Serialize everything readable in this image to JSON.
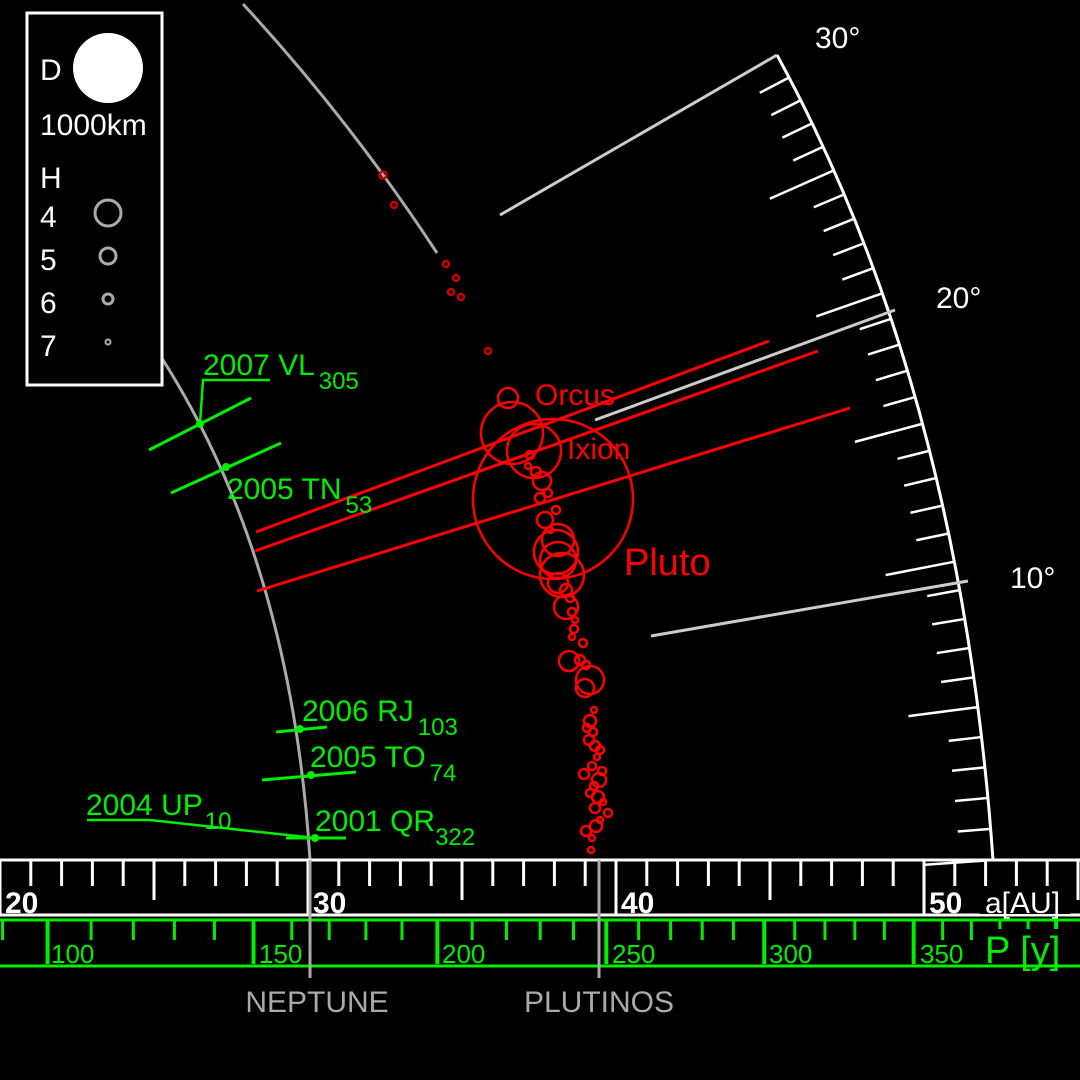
{
  "colors": {
    "background": "#000000",
    "scale_white": "#ffffff",
    "guide_grey": "#aaaaaa",
    "trojans_green": "#00ee00",
    "plutinos_red": "#ff0000"
  },
  "legend": {
    "d_label": "D",
    "d_value": "1000km",
    "h_label": "H",
    "h_items": [
      {
        "label": "4",
        "h": 4
      },
      {
        "label": "5",
        "h": 5
      },
      {
        "label": "6",
        "h": 6
      },
      {
        "label": "7",
        "h": 7
      }
    ]
  },
  "axes": {
    "au_label": "a[AU]",
    "au_ticks": [
      "20",
      "30",
      "40",
      "50"
    ],
    "period_label": "P [y]",
    "period_ticks": [
      "100",
      "150",
      "200",
      "250",
      "300",
      "350"
    ],
    "inclination_ticks": [
      "30°",
      "20°",
      "10°"
    ]
  },
  "markers": {
    "neptune": "NEPTUNE",
    "plutinos": "PLUTINOS"
  },
  "plutino_labels": {
    "orcus": "Orcus",
    "ixion": "Ixion",
    "pluto": "Pluto"
  },
  "trojans": [
    {
      "name": "2007 VL",
      "sub": "305"
    },
    {
      "name": "2005 TN",
      "sub": "53"
    },
    {
      "name": "2006 RJ",
      "sub": "103"
    },
    {
      "name": "2005 TO",
      "sub": "74"
    },
    {
      "name": "2004 UP",
      "sub": "10"
    },
    {
      "name": "2001 QR",
      "sub": "322"
    }
  ]
}
